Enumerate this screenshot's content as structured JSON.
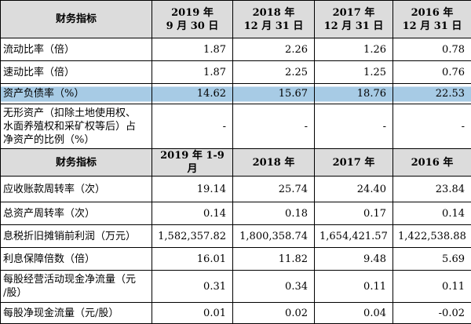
{
  "header1": {
    "label": "财务指标",
    "cols": [
      {
        "line1": "2019 年",
        "line2": "9 月 30 日"
      },
      {
        "line1": "2018 年",
        "line2": "12 月 31 日"
      },
      {
        "line1": "2017 年",
        "line2": "12 月 31 日"
      },
      {
        "line1": "2016 年",
        "line2": "12 月 31 日"
      }
    ]
  },
  "section1": [
    {
      "label": "流动比率（倍）",
      "values": [
        "1.87",
        "2.26",
        "1.26",
        "0.78"
      ]
    },
    {
      "label": "速动比率（倍）",
      "values": [
        "1.87",
        "2.25",
        "1.25",
        "0.76"
      ]
    },
    {
      "label": "资产负债率（%）",
      "values": [
        "14.62",
        "15.67",
        "18.76",
        "22.53"
      ]
    },
    {
      "label_lines": [
        "无形资产（扣除土地使用权、",
        "水面养殖权和采矿权等后）占",
        "净资产的比例（%）"
      ],
      "values": [
        "-",
        "-",
        "-",
        "-"
      ]
    }
  ],
  "header2": {
    "label": "财务指标",
    "cols": [
      "2019 年 1-9 月",
      "2018 年",
      "2017 年",
      "2016 年"
    ]
  },
  "section2": [
    {
      "label": "应收账款周转率（次）",
      "values": [
        "19.14",
        "25.74",
        "24.40",
        "23.84"
      ]
    },
    {
      "label": "总资产周转率（次）",
      "values": [
        "0.14",
        "0.18",
        "0.17",
        "0.14"
      ]
    },
    {
      "label": "息税折旧摊销前利润（万元）",
      "values": [
        "1,582,357.82",
        "1,800,358.74",
        "1,654,421.57",
        "1,422,538.88"
      ]
    },
    {
      "label": "利息保障倍数（倍）",
      "values": [
        "16.01",
        "11.82",
        "9.48",
        "5.69"
      ]
    },
    {
      "label_lines": [
        "每股经营活动现金净流量（元",
        "/股）"
      ],
      "values": [
        "0.31",
        "0.34",
        "0.11",
        "0.11"
      ]
    },
    {
      "label": "每股净现金流量（元/股）",
      "values": [
        "0.01",
        "0.02",
        "0.04",
        "-0.02"
      ]
    }
  ]
}
